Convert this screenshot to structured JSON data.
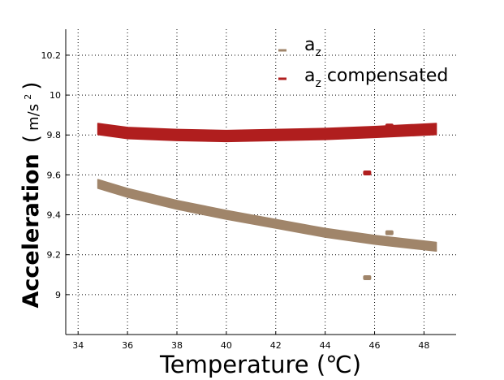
{
  "chart_data": {
    "type": "scatter",
    "xlabel": "Temperature (℃)",
    "ylabel_main": "Acceleration",
    "ylabel_unit": "m/s",
    "ylabel_unit_exp": "2",
    "xlim": [
      33.5,
      49.3
    ],
    "ylim": [
      8.8,
      10.33
    ],
    "xticks": [
      34,
      36,
      38,
      40,
      42,
      44,
      46,
      48
    ],
    "yticks": [
      9,
      9.2,
      9.4,
      9.6,
      9.8,
      10,
      10.2
    ],
    "grid": true,
    "legend_position": "top-right",
    "legend": [
      {
        "base": "a",
        "sub": "z",
        "suffix": ""
      },
      {
        "base": "a",
        "sub": "z",
        "suffix": " compensated"
      }
    ],
    "series": [
      {
        "color": "#a0856a",
        "band_halfwidth": 0.022,
        "points": [
          [
            34.8,
            9.555
          ],
          [
            36,
            9.51
          ],
          [
            38,
            9.45
          ],
          [
            40,
            9.4
          ],
          [
            42,
            9.355
          ],
          [
            44,
            9.31
          ],
          [
            46,
            9.275
          ],
          [
            48.5,
            9.24
          ]
        ],
        "outliers": [
          [
            45.7,
            9.085
          ],
          [
            46.6,
            9.31
          ]
        ]
      },
      {
        "color": "#b01e1e",
        "band_halfwidth": 0.028,
        "points": [
          [
            34.8,
            9.83
          ],
          [
            36,
            9.81
          ],
          [
            38,
            9.8
          ],
          [
            40,
            9.795
          ],
          [
            42,
            9.8
          ],
          [
            44,
            9.805
          ],
          [
            46,
            9.815
          ],
          [
            48.5,
            9.83
          ]
        ],
        "outliers": [
          [
            45.7,
            9.61
          ],
          [
            46.6,
            9.845
          ]
        ]
      }
    ]
  }
}
